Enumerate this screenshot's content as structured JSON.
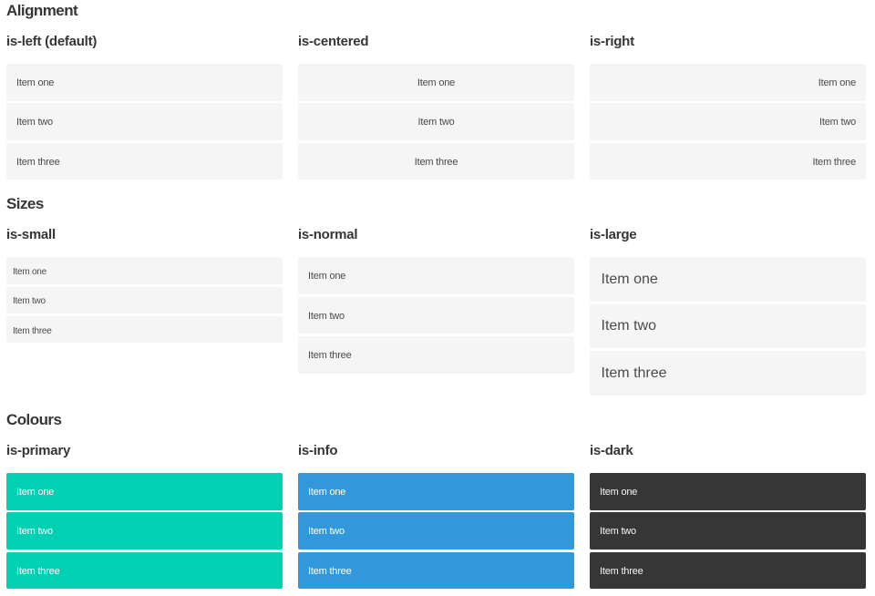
{
  "items": [
    "Item one",
    "Item two",
    "Item three"
  ],
  "colors": {
    "title_text": "#363636",
    "heading_text": "#363636",
    "item_background": "#f5f5f5",
    "item_text": "#4a4a4a",
    "primary": "#00d1b2",
    "info": "#3298dc",
    "dark": "#363636",
    "text_on_primary": "#ffffff",
    "text_on_info": "#ffffff",
    "text_on_dark": "#f5f5f5",
    "page_background": "#ffffff"
  },
  "sections": [
    {
      "title": "Alignment",
      "columns": [
        {
          "heading": "is-left (default)"
        },
        {
          "heading": "is-centered"
        },
        {
          "heading": "is-right"
        }
      ]
    },
    {
      "title": "Sizes",
      "columns": [
        {
          "heading": "is-small"
        },
        {
          "heading": "is-normal"
        },
        {
          "heading": "is-large"
        }
      ]
    },
    {
      "title": "Colours",
      "columns": [
        {
          "heading": "is-primary"
        },
        {
          "heading": "is-info"
        },
        {
          "heading": "is-dark"
        }
      ]
    }
  ]
}
